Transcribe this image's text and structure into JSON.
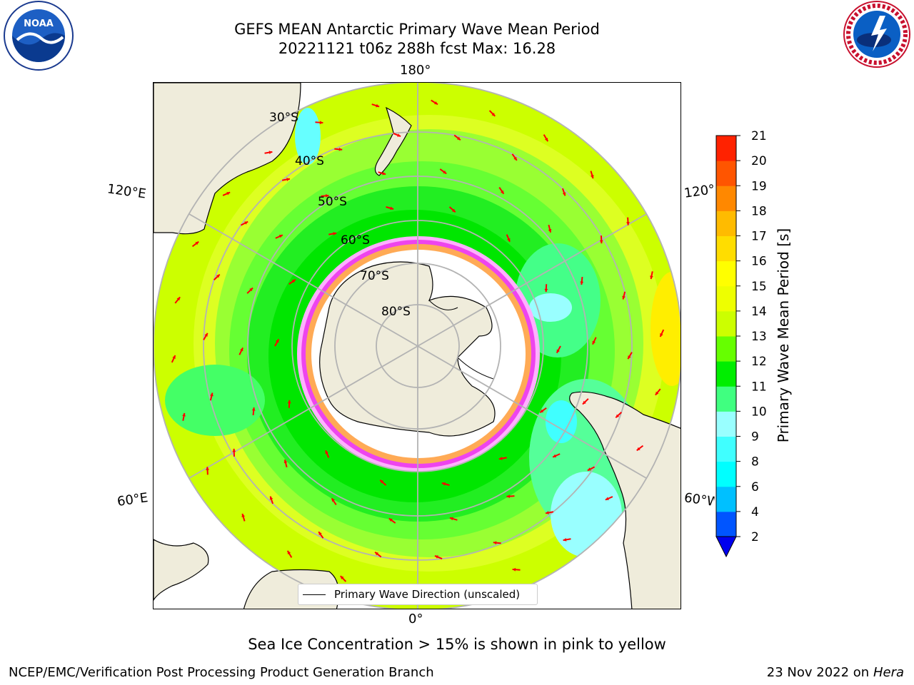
{
  "header": {
    "title_line1": "GEFS MEAN Antarctic Primary Wave Mean Period",
    "title_line2": "20221121 t06z 288h fcst   Max: 16.28"
  },
  "logos": {
    "left": {
      "icon": "noaa-logo-icon",
      "text": "NOAA"
    },
    "right": {
      "icon": "national-weather-service-logo-icon"
    }
  },
  "map": {
    "lon_labels": {
      "top": "180°",
      "bottom": "0°",
      "upper_left": "120°E",
      "lower_left": "60°E",
      "upper_right": "120°W",
      "lower_right": "60°W"
    },
    "lat_labels": [
      "30°S",
      "40°S",
      "50°S",
      "60°S",
      "70°S",
      "80°S"
    ],
    "legend_label": "Primary Wave Direction (unscaled)"
  },
  "colorbar": {
    "label": "Primary Wave Mean Period [s]",
    "ticks": [
      "2",
      "4",
      "6",
      "8",
      "9",
      "10",
      "11",
      "12",
      "13",
      "14",
      "15",
      "16",
      "17",
      "18",
      "19",
      "20",
      "21"
    ],
    "colors": [
      "#0055ff",
      "#00c0ff",
      "#00ffff",
      "#40ffff",
      "#99ffff",
      "#40ff80",
      "#00ee00",
      "#66ff00",
      "#ccff00",
      "#eeff00",
      "#ffff00",
      "#ffdd00",
      "#ffbb00",
      "#ff8800",
      "#ff5500",
      "#ff2200"
    ],
    "under_color": "#0000ee"
  },
  "notes": {
    "sea_ice": "Sea Ice Concentration > 15% is shown in pink to yellow"
  },
  "footer": {
    "left": "NCEP/EMC/Verification Post Processing Product Generation Branch",
    "date": "23 Nov 2022 on",
    "host": "Hera"
  }
}
